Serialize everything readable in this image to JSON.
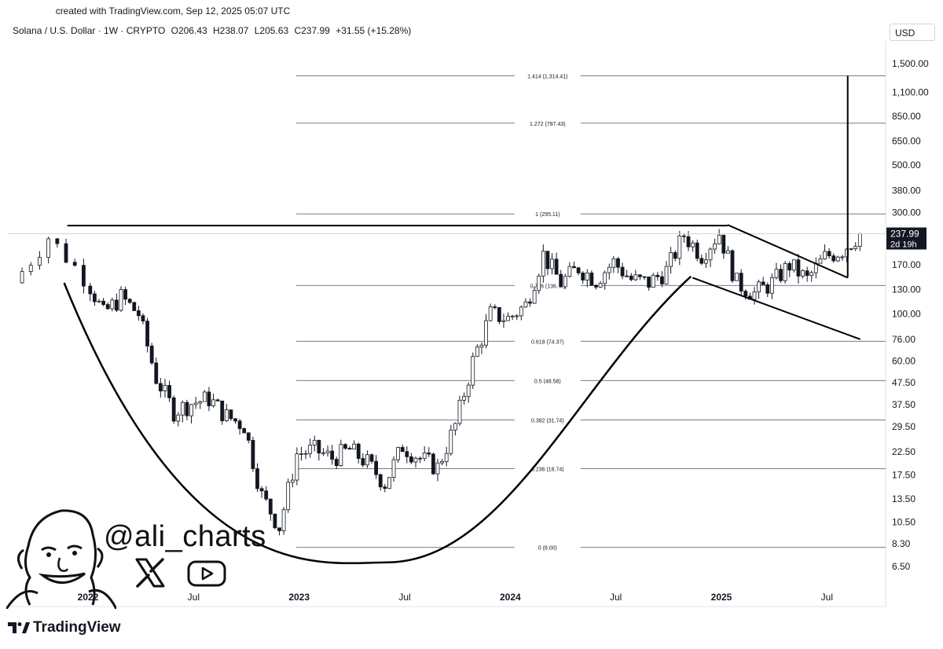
{
  "created_text": "created with TradingView.com, Sep 12, 2025 05:07 UTC",
  "header": {
    "symbol": "Solana / U.S. Dollar · 1W · CRYPTO",
    "open": "O206.43",
    "high": "H238.07",
    "low": "L205.63",
    "close": "C237.99",
    "change": "+31.55 (+15.28%)"
  },
  "currency": "USD",
  "brand": "TradingView",
  "handle": "@ali_charts",
  "icons": [
    "x-logo-icon",
    "youtube-icon",
    "tradingview-logo-icon",
    "avatar-caricature"
  ],
  "colors": {
    "line": "#000000",
    "fib": "#787b86",
    "price_tag_bg": "#131722",
    "price_tag_text": "#ffffff"
  },
  "chart_data": {
    "type": "candlestick",
    "scale": "log",
    "y_ticks": [
      1500,
      1100,
      850,
      650,
      500,
      380,
      300,
      170,
      130,
      100,
      76,
      60,
      47.5,
      37.5,
      29.5,
      22.5,
      17.5,
      13.5,
      10.5,
      8.3,
      6.5
    ],
    "y_tick_labels": [
      "1,500.00",
      "1,100.00",
      "850.00",
      "650.00",
      "500.00",
      "380.00",
      "300.00",
      "170.00",
      "130.00",
      "100.00",
      "76.00",
      "60.00",
      "47.50",
      "37.50",
      "29.50",
      "22.50",
      "17.50",
      "13.50",
      "10.50",
      "8.30",
      "6.50"
    ],
    "x_ticks": [
      {
        "label": "2022",
        "date": "2022-01"
      },
      {
        "label": "Jul",
        "date": "2022-07"
      },
      {
        "label": "2023",
        "date": "2023-01"
      },
      {
        "label": "Jul",
        "date": "2023-07"
      },
      {
        "label": "2024",
        "date": "2024-01"
      },
      {
        "label": "Jul",
        "date": "2024-07"
      },
      {
        "label": "2025",
        "date": "2025-01"
      },
      {
        "label": "Jul",
        "date": "2025-07"
      }
    ],
    "last_price": "237.99",
    "countdown": "2d 19h",
    "fib_levels": [
      {
        "ratio": "1.414",
        "value": 1314.41,
        "label": "1.414 (1,314.41)"
      },
      {
        "ratio": "1.272",
        "value": 787.43,
        "label": "1.272 (787.43)"
      },
      {
        "ratio": "1",
        "value": 295.11,
        "label": "1 (295.11)"
      },
      {
        "ratio": "0.786",
        "value": 136.0,
        "label": "0.786 (136.…)"
      },
      {
        "ratio": "0.618",
        "value": 74.37,
        "label": "0.618 (74.37)"
      },
      {
        "ratio": "0.5",
        "value": 48.58,
        "label": "0.5 (48.58)"
      },
      {
        "ratio": "0.382",
        "value": 31.74,
        "label": "0.382 (31.74)"
      },
      {
        "ratio": "0.236",
        "value": 18.74,
        "label": "0.236 (18.74)"
      },
      {
        "ratio": "0",
        "value": 8.0,
        "label": "0 (8.00)"
      }
    ],
    "price_path": [
      {
        "date": "2021-09",
        "close": 140
      },
      {
        "date": "2021-11",
        "close": 230
      },
      {
        "date": "2022-01",
        "close": 150
      },
      {
        "date": "2022-02",
        "close": 100
      },
      {
        "date": "2022-03",
        "close": 120
      },
      {
        "date": "2022-04",
        "close": 100
      },
      {
        "date": "2022-05",
        "close": 50
      },
      {
        "date": "2022-06",
        "close": 35
      },
      {
        "date": "2022-07",
        "close": 38
      },
      {
        "date": "2022-08",
        "close": 40
      },
      {
        "date": "2022-09",
        "close": 33
      },
      {
        "date": "2022-10",
        "close": 30
      },
      {
        "date": "2022-11",
        "close": 14
      },
      {
        "date": "2022-12",
        "close": 10
      },
      {
        "date": "2023-01",
        "close": 22
      },
      {
        "date": "2023-02",
        "close": 23
      },
      {
        "date": "2023-03",
        "close": 21
      },
      {
        "date": "2023-04",
        "close": 23
      },
      {
        "date": "2023-05",
        "close": 20
      },
      {
        "date": "2023-06",
        "close": 16
      },
      {
        "date": "2023-07",
        "close": 24
      },
      {
        "date": "2023-08",
        "close": 21
      },
      {
        "date": "2023-09",
        "close": 19
      },
      {
        "date": "2023-10",
        "close": 30
      },
      {
        "date": "2023-11",
        "close": 60
      },
      {
        "date": "2023-12",
        "close": 100
      },
      {
        "date": "2024-01",
        "close": 95
      },
      {
        "date": "2024-02",
        "close": 110
      },
      {
        "date": "2024-03",
        "close": 190
      },
      {
        "date": "2024-04",
        "close": 140
      },
      {
        "date": "2024-05",
        "close": 165
      },
      {
        "date": "2024-06",
        "close": 145
      },
      {
        "date": "2024-07",
        "close": 175
      },
      {
        "date": "2024-08",
        "close": 145
      },
      {
        "date": "2024-09",
        "close": 140
      },
      {
        "date": "2024-10",
        "close": 160
      },
      {
        "date": "2024-11",
        "close": 235
      },
      {
        "date": "2024-12",
        "close": 190
      },
      {
        "date": "2025-01",
        "close": 240
      },
      {
        "date": "2025-02",
        "close": 140
      },
      {
        "date": "2025-03",
        "close": 125
      },
      {
        "date": "2025-04",
        "close": 140
      },
      {
        "date": "2025-05",
        "close": 170
      },
      {
        "date": "2025-06",
        "close": 145
      },
      {
        "date": "2025-07",
        "close": 185
      },
      {
        "date": "2025-08",
        "close": 200
      },
      {
        "date": "2025-09",
        "close": 237.99
      }
    ],
    "annotations": [
      {
        "type": "horizontal-resistance",
        "value": 260
      },
      {
        "type": "cup-curve",
        "from": "2021-12",
        "bottom": "2023-06",
        "to": "2024-11"
      },
      {
        "type": "falling-channel",
        "from": "2025-01",
        "to": "2025-08"
      },
      {
        "type": "vertical-target",
        "date": "2025-08",
        "to": 1314.41
      }
    ]
  }
}
